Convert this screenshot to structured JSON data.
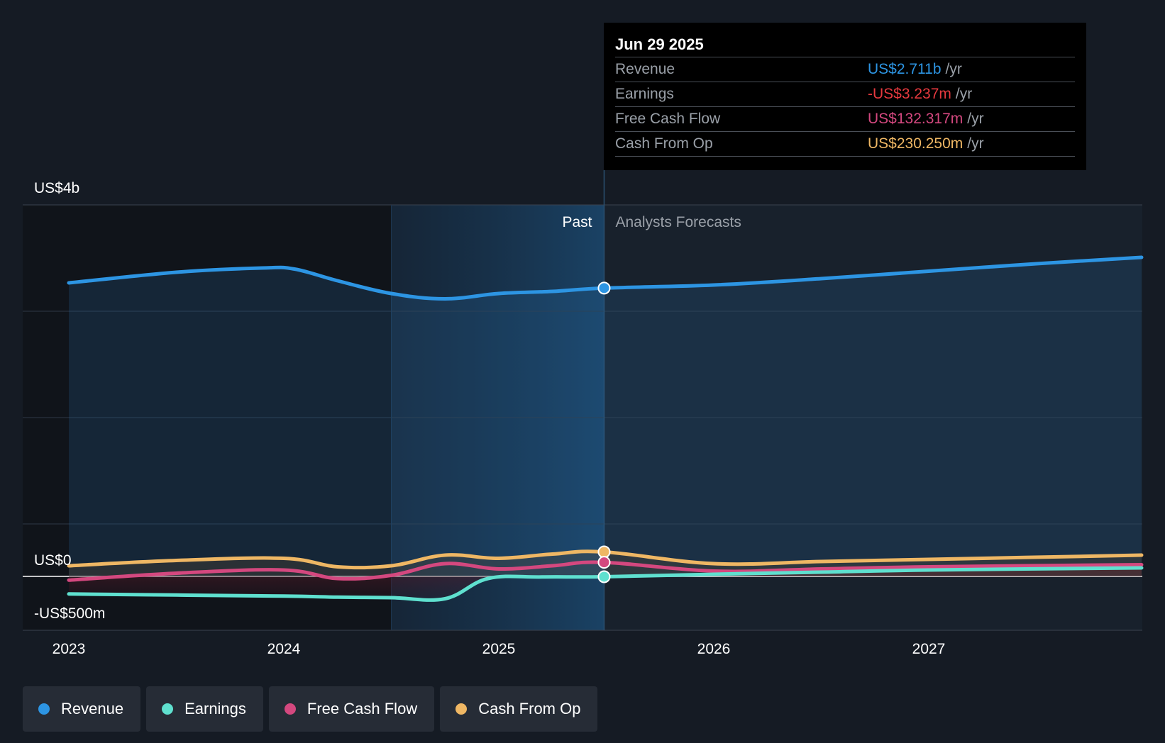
{
  "chart_data": {
    "type": "line",
    "y_axis": {
      "top_label": "US$4b",
      "zero_label": "US$0",
      "bottom_label": "-US$500m",
      "ylim": [
        -500,
        3500
      ],
      "unit": "US$m"
    },
    "x_ticks": [
      "2023",
      "2024",
      "2025",
      "2026",
      "2027"
    ],
    "x_tick_values": [
      2023.0,
      2024.0,
      2025.0,
      2026.0,
      2027.0
    ],
    "xlim": [
      2022.8,
      2027.99
    ],
    "past_start": 2024.5,
    "divider": 2025.49,
    "past_label": "Past",
    "forecast_label": "Analysts Forecasts",
    "series": [
      {
        "name": "Revenue",
        "color": "#2d95e3",
        "points": [
          [
            2023.0,
            2760
          ],
          [
            2023.5,
            2860
          ],
          [
            2023.9,
            2900
          ],
          [
            2024.05,
            2890
          ],
          [
            2024.25,
            2780
          ],
          [
            2024.5,
            2660
          ],
          [
            2024.75,
            2610
          ],
          [
            2025.0,
            2660
          ],
          [
            2025.25,
            2680
          ],
          [
            2025.49,
            2711
          ],
          [
            2026.0,
            2740
          ],
          [
            2026.5,
            2800
          ],
          [
            2027.0,
            2870
          ],
          [
            2027.5,
            2940
          ],
          [
            2027.99,
            3000
          ]
        ]
      },
      {
        "name": "Earnings",
        "color": "#5fe0cf",
        "points": [
          [
            2023.0,
            -165
          ],
          [
            2023.5,
            -175
          ],
          [
            2024.0,
            -185
          ],
          [
            2024.25,
            -195
          ],
          [
            2024.5,
            -200
          ],
          [
            2024.75,
            -210
          ],
          [
            2024.95,
            -20
          ],
          [
            2025.2,
            -5
          ],
          [
            2025.49,
            -3.237
          ],
          [
            2026.0,
            20
          ],
          [
            2026.5,
            40
          ],
          [
            2027.0,
            60
          ],
          [
            2027.99,
            80
          ]
        ]
      },
      {
        "name": "Free Cash Flow",
        "color": "#d4487f",
        "points": [
          [
            2023.0,
            -35
          ],
          [
            2023.5,
            30
          ],
          [
            2024.0,
            60
          ],
          [
            2024.25,
            -20
          ],
          [
            2024.5,
            10
          ],
          [
            2024.75,
            120
          ],
          [
            2025.0,
            70
          ],
          [
            2025.25,
            100
          ],
          [
            2025.49,
            132.317
          ],
          [
            2026.0,
            50
          ],
          [
            2026.5,
            70
          ],
          [
            2027.0,
            90
          ],
          [
            2027.99,
            110
          ]
        ]
      },
      {
        "name": "Cash From Op",
        "color": "#efb764",
        "points": [
          [
            2023.0,
            100
          ],
          [
            2023.5,
            150
          ],
          [
            2024.0,
            170
          ],
          [
            2024.25,
            90
          ],
          [
            2024.5,
            100
          ],
          [
            2024.75,
            200
          ],
          [
            2025.0,
            170
          ],
          [
            2025.25,
            210
          ],
          [
            2025.49,
            230.25
          ],
          [
            2026.0,
            120
          ],
          [
            2026.5,
            140
          ],
          [
            2027.0,
            160
          ],
          [
            2027.99,
            200
          ]
        ]
      }
    ]
  },
  "tooltip": {
    "date": "Jun 29 2025",
    "rows": [
      {
        "label": "Revenue",
        "value": "US$2.711b",
        "unit": "/yr",
        "color": "#2d95e3"
      },
      {
        "label": "Earnings",
        "value": "-US$3.237m",
        "unit": "/yr",
        "color": "#e6393f"
      },
      {
        "label": "Free Cash Flow",
        "value": "US$132.317m",
        "unit": "/yr",
        "color": "#d4487f"
      },
      {
        "label": "Cash From Op",
        "value": "US$230.250m",
        "unit": "/yr",
        "color": "#efb764"
      }
    ]
  },
  "legend": [
    {
      "label": "Revenue",
      "color": "#2d95e3"
    },
    {
      "label": "Earnings",
      "color": "#5fe0cf"
    },
    {
      "label": "Free Cash Flow",
      "color": "#d4487f"
    },
    {
      "label": "Cash From Op",
      "color": "#efb764"
    }
  ]
}
